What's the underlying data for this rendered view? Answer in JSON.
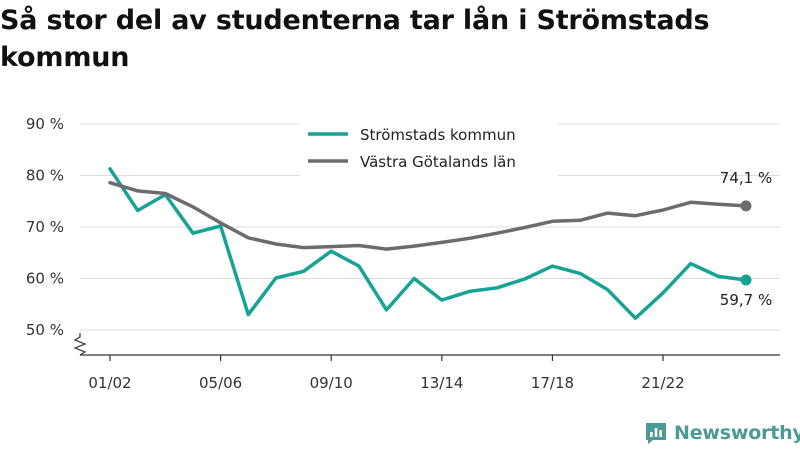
{
  "title": "Så stor del av studenterna tar lån i Strömstads kommun",
  "brand": {
    "name": "Newsworthy",
    "icon": "newsworthy-logo-icon",
    "color": "#4c9a95"
  },
  "chart_data": {
    "type": "line",
    "x_tick_labels": [
      "01/02",
      "05/06",
      "09/10",
      "13/14",
      "17/18",
      "21/22"
    ],
    "x": [
      "01/02",
      "02/03",
      "03/04",
      "04/05",
      "05/06",
      "06/07",
      "07/08",
      "08/09",
      "09/10",
      "10/11",
      "11/12",
      "12/13",
      "13/14",
      "14/15",
      "15/16",
      "16/17",
      "17/18",
      "18/19",
      "19/20",
      "20/21",
      "21/22",
      "22/23",
      "23/24",
      "24/25"
    ],
    "y_tick_labels": [
      "50 %",
      "60 %",
      "70 %",
      "80 %",
      "90 %"
    ],
    "y_ticks": [
      50,
      60,
      70,
      80,
      90
    ],
    "ylim": [
      45,
      90
    ],
    "y_axis_break": true,
    "grid": "horizontal",
    "legend_position": "top-center",
    "series": [
      {
        "name": "Strömstads kommun",
        "color": "#16a396",
        "values": [
          81.3,
          73.2,
          76.3,
          68.8,
          70.2,
          53.0,
          60.1,
          61.4,
          65.3,
          62.4,
          53.9,
          60.0,
          55.8,
          57.5,
          58.2,
          59.9,
          62.4,
          61.0,
          57.8,
          52.3,
          57.2,
          62.9,
          60.4,
          59.7
        ],
        "end_label": "59,7 %"
      },
      {
        "name": "Västra Götalands län",
        "color": "#6d6b70",
        "values": [
          78.6,
          77.0,
          76.5,
          73.9,
          70.8,
          67.9,
          66.7,
          66.0,
          66.2,
          66.4,
          65.7,
          66.3,
          67.0,
          67.8,
          68.8,
          69.9,
          71.1,
          71.3,
          72.7,
          72.2,
          73.3,
          74.8,
          74.4,
          74.1
        ],
        "end_label": "74,1 %"
      }
    ]
  }
}
